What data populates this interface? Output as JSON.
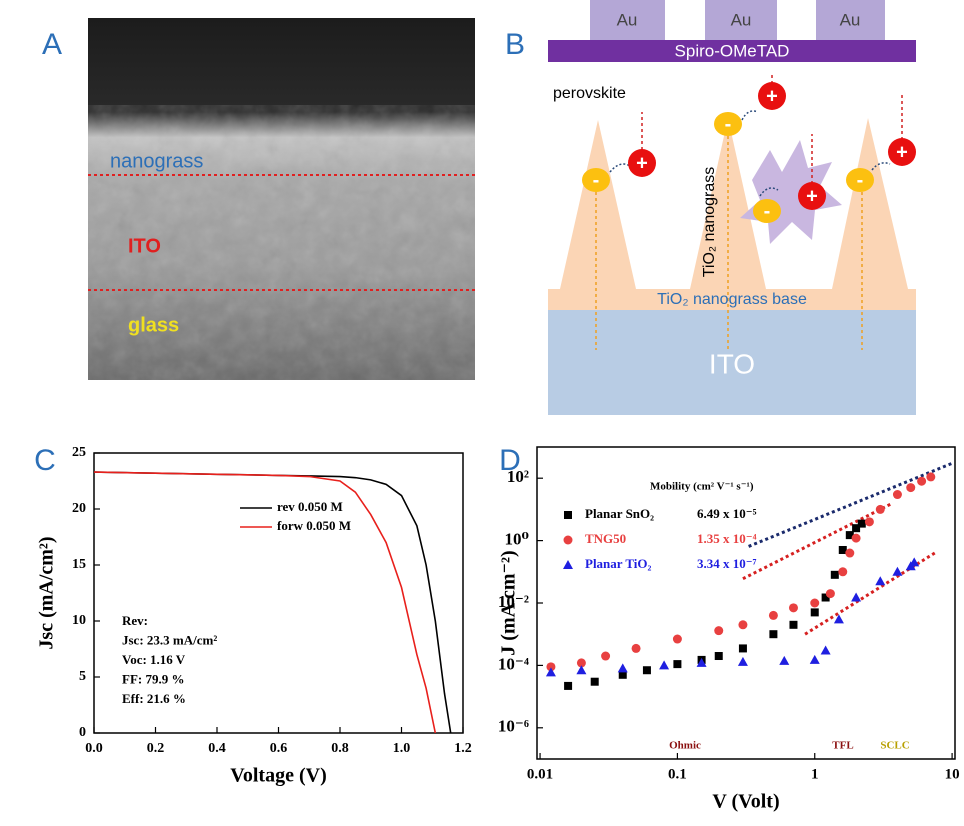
{
  "panel_labels": [
    "A",
    "B",
    "C",
    "D"
  ],
  "sem": {
    "labels": [
      "nanograss",
      "ITO",
      "glass"
    ]
  },
  "diagram": {
    "electrodes": [
      "Au",
      "Au",
      "Au"
    ],
    "htl": "Spiro-OMeTAD",
    "perovskite": "perovskite",
    "nanograss": "TiO₂ nanograss",
    "base": "TiO₂ nanograss base",
    "ito": "ITO",
    "hole": "+",
    "electron": "-"
  },
  "chart_data": [
    {
      "type": "line",
      "x_label": "Voltage (V)",
      "y_label": "Jsc (mA/cm²)",
      "xlim": [
        0,
        1.2
      ],
      "xticks": [
        {
          "value": 0,
          "label": "0.0"
        },
        0.2,
        0.4,
        0.6,
        0.8,
        {
          "value": 1,
          "label": "1.0"
        },
        1.2
      ],
      "ylim": [
        0,
        25
      ],
      "yticks": [
        0,
        5,
        10,
        15,
        20,
        25
      ],
      "x": [
        0,
        0.2,
        0.4,
        0.6,
        0.7,
        0.8,
        0.85,
        0.9,
        0.95,
        1.0,
        1.05,
        1.08,
        1.11,
        1.14,
        1.16
      ],
      "series": [
        {
          "name": "rev 0.050 M",
          "color": "#000000",
          "values": [
            23.3,
            23.2,
            23.1,
            23.0,
            22.95,
            22.9,
            22.8,
            22.6,
            22.2,
            21.2,
            18.5,
            15,
            10,
            3.5,
            0
          ]
        },
        {
          "name": "forw 0.050 M",
          "color": "#e8201c",
          "values": [
            23.3,
            23.2,
            23.1,
            23.0,
            22.9,
            22.5,
            21.5,
            19.5,
            17,
            13,
            7,
            4,
            0,
            null,
            null
          ]
        }
      ],
      "annotation": [
        "Rev:",
        "Jsc: 23.3 mA/cm²",
        "Voc: 1.16 V",
        "FF: 79.9 %",
        "Eff: 21.6 %"
      ]
    },
    {
      "type": "scatter",
      "x_label": "V (Volt)",
      "y_label": "J (mA cm⁻²)",
      "xlog": true,
      "ylog": true,
      "xlim": [
        0.0095,
        10.5
      ],
      "xticks": [
        0.01,
        0.1,
        1,
        10
      ],
      "ylim": [
        1e-07,
        1000
      ],
      "yticks": [
        {
          "value": 1e-06,
          "label": "10⁻⁶"
        },
        {
          "value": 0.0001,
          "label": "10⁻⁴"
        },
        {
          "value": 0.01,
          "label": "10⁻²"
        },
        {
          "value": 1,
          "label": "10⁰"
        },
        {
          "value": 100,
          "label": "10²"
        }
      ],
      "mobility_header": "Mobility (cm² V⁻¹ s⁻¹)",
      "series": [
        {
          "name": "Planar SnO₂",
          "mobility": "6.49 x 10⁻⁵",
          "color": "#000000",
          "marker": "square",
          "x": [
            0.016,
            0.025,
            0.04,
            0.06,
            0.1,
            0.15,
            0.2,
            0.3,
            0.5,
            0.7,
            1.0,
            1.2,
            1.4,
            1.6,
            1.8,
            2.0,
            2.2
          ],
          "values": [
            2.2e-05,
            3e-05,
            5e-05,
            7e-05,
            0.00011,
            0.00015,
            0.0002,
            0.00035,
            0.001,
            0.002,
            0.005,
            0.015,
            0.08,
            0.5,
            1.5,
            2.5,
            3.5
          ]
        },
        {
          "name": "TNG50",
          "mobility": "1.35 x 10⁻⁴",
          "color": "#e84040",
          "marker": "circle",
          "x": [
            0.012,
            0.02,
            0.03,
            0.05,
            0.1,
            0.2,
            0.3,
            0.5,
            0.7,
            1.0,
            1.3,
            1.6,
            1.8,
            2.0,
            2.5,
            3,
            4,
            5,
            6,
            7
          ],
          "values": [
            9e-05,
            0.00012,
            0.0002,
            0.00035,
            0.0007,
            0.0013,
            0.002,
            0.004,
            0.007,
            0.01,
            0.02,
            0.1,
            0.4,
            1.2,
            4,
            10,
            30,
            50,
            80,
            110
          ]
        },
        {
          "name": "Planar TiO₂",
          "mobility": "3.34 x 10⁻⁷",
          "color": "#1f1fe0",
          "marker": "triangle",
          "x": [
            0.012,
            0.02,
            0.04,
            0.08,
            0.15,
            0.3,
            0.6,
            1.0,
            1.2,
            1.5,
            2,
            3,
            4,
            5,
            5.3
          ],
          "values": [
            6e-05,
            7e-05,
            8e-05,
            0.0001,
            0.00012,
            0.00013,
            0.00014,
            0.00015,
            0.0003,
            0.003,
            0.015,
            0.05,
            0.1,
            0.15,
            0.2
          ]
        }
      ],
      "fits": [
        {
          "color": "#1a2a6c",
          "x": [
            0.33,
            10
          ],
          "y": [
            0.65,
            300
          ]
        },
        {
          "color": "#d62020",
          "x": [
            0.3,
            3.6
          ],
          "y": [
            0.06,
            15
          ]
        },
        {
          "color": "#d62020",
          "x": [
            0.85,
            7.8
          ],
          "y": [
            0.001,
            0.45
          ]
        }
      ],
      "regions": [
        {
          "label": "Ohmic",
          "color": "#8b1010"
        },
        {
          "label": "TFL",
          "color": "#8b1010"
        },
        {
          "label": "SCLC",
          "color": "#b8a000"
        }
      ]
    }
  ]
}
